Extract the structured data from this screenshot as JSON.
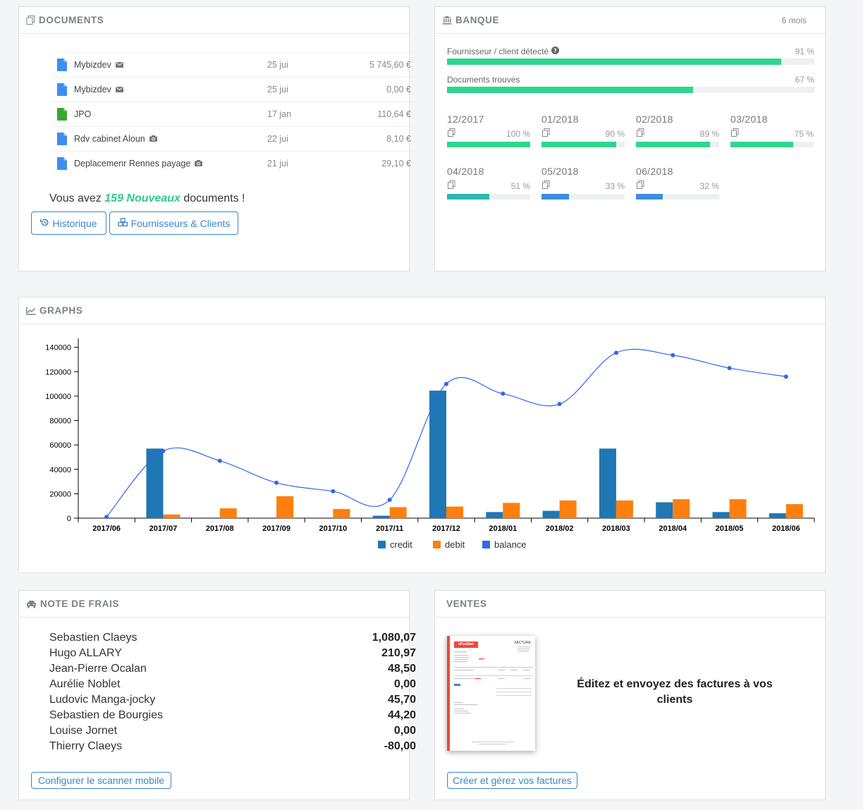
{
  "documents": {
    "title": "DOCUMENTS",
    "items": [
      {
        "name": "Mybizdev",
        "badge": "mail-icon",
        "date": "25 jui",
        "amount": "5 745,60 €",
        "color": "#3d8ef0"
      },
      {
        "name": "Mybizdev",
        "badge": "mail-icon",
        "date": "25 jui",
        "amount": "0,00 €",
        "color": "#3d8ef0"
      },
      {
        "name": "JPO",
        "badge": "",
        "date": "17 jan",
        "amount": "110,64 €",
        "color": "#38a82e"
      },
      {
        "name": "Rdv cabinet Aloun",
        "badge": "camera-icon",
        "date": "22 jui",
        "amount": "8,10 €",
        "color": "#3d8ef0"
      },
      {
        "name": "Deplacemenr Rennes payage",
        "badge": "camera-icon",
        "date": "21 jui",
        "amount": "29,10 €",
        "color": "#3d8ef0"
      }
    ],
    "summary_prefix": "Vous avez",
    "summary_highlight": "159 Nouveaux",
    "summary_suffix": "documents !",
    "btn_history": "Historique",
    "btn_suppliers": "Fournisseurs & Clients"
  },
  "banque": {
    "title": "BANQUE",
    "period": "6 mois",
    "bars": [
      {
        "label": "Fournisseur / client détecté",
        "pct_label": "91 %",
        "value": 91
      },
      {
        "label": "Documents trouvés",
        "pct_label": "67 %",
        "value": 67
      }
    ],
    "months": [
      {
        "label": "12/2017",
        "pct_label": "100 %",
        "value": 100,
        "color": "#2fd68c"
      },
      {
        "label": "01/2018",
        "pct_label": "90 %",
        "value": 90,
        "color": "#2fd68c"
      },
      {
        "label": "02/2018",
        "pct_label": "89 %",
        "value": 89,
        "color": "#2fd68c"
      },
      {
        "label": "03/2018",
        "pct_label": "75 %",
        "value": 75,
        "color": "#2fd68c"
      },
      {
        "label": "04/2018",
        "pct_label": "51 %",
        "value": 51,
        "color": "#2eb8b0"
      },
      {
        "label": "05/2018",
        "pct_label": "33 %",
        "value": 33,
        "color": "#3a8fe0"
      },
      {
        "label": "06/2018",
        "pct_label": "32 %",
        "value": 32,
        "color": "#3a8fe0"
      }
    ]
  },
  "graphs": {
    "title": "GRAPHS"
  },
  "chart_data": {
    "type": "bar",
    "categories": [
      "2017/06",
      "2017/07",
      "2017/08",
      "2017/09",
      "2017/10",
      "2017/11",
      "2017/12",
      "2018/01",
      "2018/02",
      "2018/03",
      "2018/04",
      "2018/05",
      "2018/06"
    ],
    "series": [
      {
        "name": "credit",
        "type": "bar",
        "color": "#1f77b4",
        "values": [
          0,
          57000,
          500,
          0,
          0,
          2000,
          104500,
          5000,
          6000,
          57000,
          13000,
          5000,
          4000
        ]
      },
      {
        "name": "debit",
        "type": "bar",
        "color": "#ff7f0e",
        "values": [
          0,
          3000,
          8000,
          18000,
          7500,
          9000,
          9500,
          12500,
          14500,
          14500,
          15500,
          15500,
          11500
        ]
      },
      {
        "name": "balance",
        "type": "line",
        "color": "#3366ee",
        "values": [
          1000,
          55000,
          47000,
          29000,
          22000,
          15000,
          110000,
          102000,
          93500,
          135500,
          133500,
          123000,
          116000
        ]
      }
    ],
    "yticks": [
      0,
      20000,
      40000,
      60000,
      80000,
      100000,
      120000,
      140000
    ],
    "ylim": [
      0,
      145000
    ],
    "legend": "bottom-center",
    "grid": false
  },
  "notes": {
    "title": "NOTE DE FRAIS",
    "items": [
      {
        "name": "Sebastien Claeys",
        "value": "1,080,07"
      },
      {
        "name": "Hugo ALLARY",
        "value": "210,97"
      },
      {
        "name": "Jean-Pierre Ocalan",
        "value": "48,50"
      },
      {
        "name": "Aurélie Noblet",
        "value": "0,00"
      },
      {
        "name": "Ludovic Manga-jocky",
        "value": "45,70"
      },
      {
        "name": "Sebastien de Bourgies",
        "value": "44,20"
      },
      {
        "name": "Louise Jornet",
        "value": "0,00"
      },
      {
        "name": "Thierry Claeys",
        "value": "-80,00"
      }
    ],
    "btn": "Configurer le scanner mobile"
  },
  "ventes": {
    "title": "VENTES",
    "text": "Éditez et envoyez des factures à vos clients",
    "btn": "Créer et gérez vos factures",
    "invoice_title": "FACTURE",
    "invoice_logo": "ePosMan"
  }
}
